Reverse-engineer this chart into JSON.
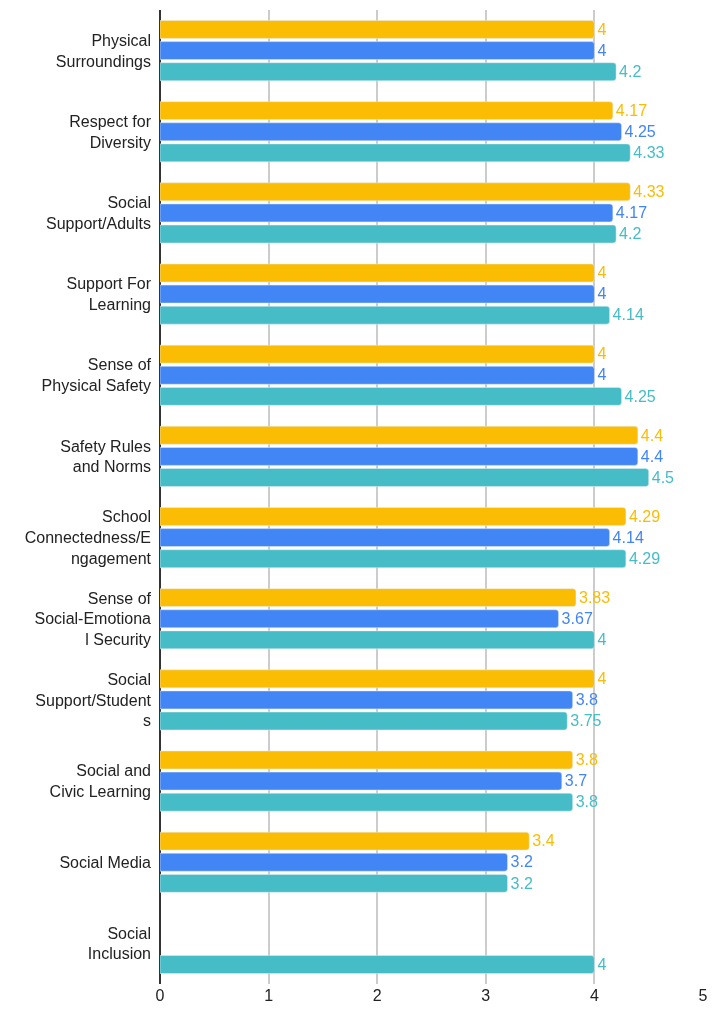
{
  "chart_data": {
    "type": "bar",
    "orientation": "horizontal",
    "categories": [
      "Physical Surroundings",
      "Respect for Diversity",
      "Social Support/Adults",
      "Support For Learning",
      "Sense of Physical Safety",
      "Safety Rules and Norms",
      "School Connectedness/Engagement",
      "Sense of Social-Emotional Security",
      "Social Support/Students",
      "Social and Civic Learning",
      "Social Media",
      "Social Inclusion"
    ],
    "series": [
      {
        "color": "#fbbc04",
        "values": [
          4,
          4.17,
          4.33,
          4,
          4,
          4.4,
          4.29,
          3.83,
          4,
          3.8,
          3.4,
          null
        ]
      },
      {
        "color": "#4285f4",
        "values": [
          4,
          4.25,
          4.17,
          4,
          4,
          4.4,
          4.14,
          3.67,
          3.8,
          3.7,
          3.2,
          null
        ]
      },
      {
        "color": "#46bdc6",
        "values": [
          4.2,
          4.33,
          4.2,
          4.14,
          4.25,
          4.5,
          4.29,
          4,
          3.75,
          3.8,
          3.2,
          4
        ]
      }
    ],
    "xlim": [
      0,
      5
    ],
    "xticks": [
      0,
      1,
      2,
      3,
      4,
      5
    ],
    "grid": "x",
    "data_labels": true
  }
}
